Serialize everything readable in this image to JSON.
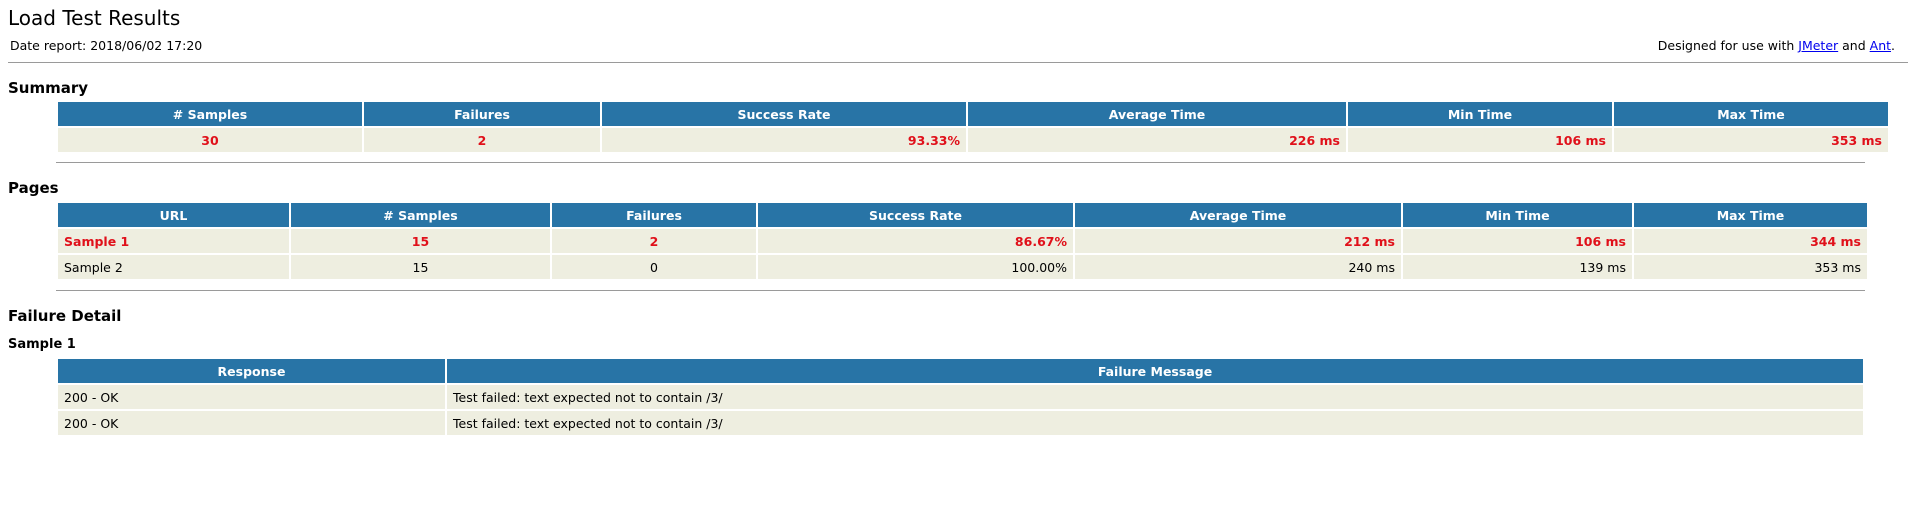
{
  "header": {
    "title": "Load Test Results",
    "date_report": "Date report: 2018/06/02 17:20",
    "designed_prefix": "Designed for use with ",
    "jmeter_link": "JMeter",
    "and_text": " and ",
    "ant_link": "Ant",
    "designed_suffix": "."
  },
  "summary": {
    "heading": "Summary",
    "columns": [
      "# Samples",
      "Failures",
      "Success Rate",
      "Average Time",
      "Min Time",
      "Max Time"
    ],
    "row": {
      "samples": "30",
      "failures": "2",
      "success_rate": "93.33%",
      "avg_time": "226 ms",
      "min_time": "106 ms",
      "max_time": "353 ms"
    },
    "fail_color": "#e0101a"
  },
  "pages": {
    "heading": "Pages",
    "columns": [
      "URL",
      "# Samples",
      "Failures",
      "Success Rate",
      "Average Time",
      "Min Time",
      "Max Time"
    ],
    "rows": [
      {
        "url": "Sample 1",
        "samples": "15",
        "failures": "2",
        "success_rate": "86.67%",
        "avg_time": "212 ms",
        "min_time": "106 ms",
        "max_time": "344 ms",
        "failed": true
      },
      {
        "url": "Sample 2",
        "samples": "15",
        "failures": "0",
        "success_rate": "100.00%",
        "avg_time": "240 ms",
        "min_time": "139 ms",
        "max_time": "353 ms",
        "failed": false
      }
    ]
  },
  "failure_detail": {
    "heading": "Failure Detail",
    "sample_heading": "Sample 1",
    "columns": [
      "Response",
      "Failure Message"
    ],
    "rows": [
      {
        "response": "200 - OK",
        "message": "Test failed: text expected not to contain /3/"
      },
      {
        "response": "200 - OK",
        "message": "Test failed: text expected not to contain /3/"
      }
    ]
  },
  "colors": {
    "header_bg": "#2874a6",
    "cell_bg": "#eeeee0",
    "link": "#0000ee"
  }
}
